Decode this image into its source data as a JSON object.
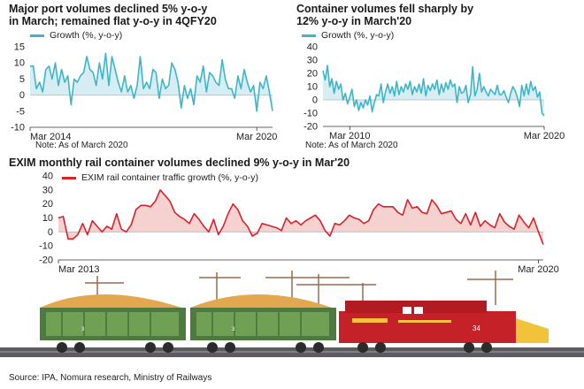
{
  "panel1": {
    "title_line1": "Major port volumes declined 5% y-o-y",
    "title_line2": "in March; remained flat y-o-y in 4QFY20",
    "legend": "Growth (%, y-o-y)",
    "note": "Note: As of March 2020",
    "color": "#3fb5c8",
    "fill": "#d6eef3"
  },
  "panel2": {
    "title_line1": "Container volumes fell sharply by",
    "title_line2": "12% y-o-y in March'20",
    "legend": "Growth (%, y-o-y)",
    "note": "Note: As of March 2020",
    "color": "#3fb5c8",
    "fill": "#d6eef3"
  },
  "panel3": {
    "title": "EXIM monthly rail container volumes declined 9% y-o-y in Mar'20",
    "legend": "EXIM rail container traffic growth (%, y-o-y)",
    "color": "#d8232a",
    "fill": "#f5d2d0"
  },
  "illustration": {
    "wagon1_number": "3",
    "wagon2_number": "3",
    "locomotive_number": "34"
  },
  "source": "Source: IPA, Nomura research, Ministry of Railways",
  "chart_data": [
    {
      "type": "area",
      "title": "Major port volumes declined 5% y-o-y in March; remained flat y-o-y in 4QFY20",
      "series": [
        {
          "name": "Growth (%, y-o-y)",
          "values": [
            9,
            9,
            2,
            4,
            1,
            8,
            9,
            5,
            10,
            3,
            8,
            4,
            6,
            -3,
            5,
            4,
            6,
            7,
            12,
            8,
            7,
            3,
            10,
            5,
            13,
            3,
            12,
            8,
            4,
            1,
            6,
            1,
            3,
            -1,
            3,
            12,
            2,
            4,
            2,
            8,
            7,
            -1,
            5,
            2,
            3,
            10,
            8,
            4,
            -4,
            3,
            -1,
            2,
            -3,
            6,
            4,
            9,
            1,
            7,
            6,
            4,
            3,
            11,
            5,
            2,
            2,
            -1,
            6,
            2,
            8,
            4,
            1,
            3,
            -5,
            4,
            2,
            6,
            1,
            -5
          ]
        }
      ],
      "ylim": [
        -10,
        15
      ],
      "yticks": [
        -10,
        -5,
        0,
        5,
        10,
        15
      ],
      "xticks": [
        {
          "label": "Mar 2014",
          "index": 0
        },
        {
          "label": "Mar 2020",
          "index": 72
        }
      ],
      "xlabel": "",
      "ylabel": ""
    },
    {
      "type": "area",
      "title": "Container volumes fell sharply by 12% y-o-y in March'20",
      "series": [
        {
          "name": "Growth (%, y-o-y)",
          "values": [
            22,
            15,
            26,
            10,
            16,
            5,
            14,
            8,
            12,
            0,
            5,
            -3,
            2,
            8,
            -5,
            0,
            -8,
            -2,
            -6,
            0,
            -4,
            3,
            -9,
            -2,
            4,
            3,
            12,
            -2,
            6,
            12,
            5,
            10,
            3,
            14,
            4,
            10,
            6,
            12,
            8,
            14,
            4,
            10,
            6,
            12,
            5,
            16,
            3,
            11,
            7,
            12,
            8,
            15,
            4,
            12,
            6,
            13,
            8,
            15,
            10,
            12,
            -2,
            10,
            5,
            6,
            11,
            -2,
            4,
            25,
            3,
            8,
            20,
            6,
            10,
            6,
            3,
            8,
            6,
            4,
            11,
            4,
            4,
            7,
            2,
            -2,
            5,
            10,
            7,
            2,
            -5,
            11,
            3,
            12,
            4,
            14,
            7,
            10,
            2,
            6,
            -10,
            -12
          ]
        }
      ],
      "ylim": [
        -20,
        40
      ],
      "yticks": [
        -20,
        -10,
        0,
        10,
        20,
        30,
        40
      ],
      "xticks": [
        {
          "label": "Mar 2010",
          "index": 12
        },
        {
          "label": "Mar 2020",
          "index": 99
        }
      ],
      "xlabel": "",
      "ylabel": ""
    },
    {
      "type": "area",
      "title": "EXIM monthly rail container volumes declined 9% y-o-y in Mar'20",
      "series": [
        {
          "name": "EXIM rail container traffic growth (%, y-o-y)",
          "values": [
            10,
            11,
            -5,
            -5,
            -2,
            6,
            -2,
            8,
            4,
            0,
            4,
            2,
            13,
            2,
            0,
            5,
            16,
            19,
            19,
            18,
            22,
            30,
            26,
            22,
            14,
            11,
            9,
            6,
            13,
            9,
            4,
            0,
            9,
            -2,
            4,
            13,
            20,
            16,
            8,
            4,
            -3,
            -1,
            6,
            5,
            4,
            3,
            1,
            10,
            6,
            8,
            5,
            8,
            10,
            12,
            8,
            1,
            -3,
            6,
            5,
            8,
            12,
            10,
            9,
            6,
            8,
            16,
            20,
            18,
            18,
            18,
            14,
            12,
            23,
            17,
            18,
            14,
            13,
            23,
            19,
            13,
            14,
            15,
            9,
            6,
            13,
            5,
            14,
            4,
            8,
            5,
            3,
            13,
            7,
            4,
            2,
            12,
            7,
            3,
            10,
            0,
            -9
          ]
        }
      ],
      "ylim": [
        -20,
        40
      ],
      "yticks": [
        -20,
        -10,
        0,
        10,
        20,
        30,
        40
      ],
      "xticks": [
        {
          "label": "Mar 2013",
          "index": 0
        },
        {
          "label": "Mar 2020",
          "index": 99
        }
      ],
      "xlabel": "",
      "ylabel": ""
    }
  ]
}
